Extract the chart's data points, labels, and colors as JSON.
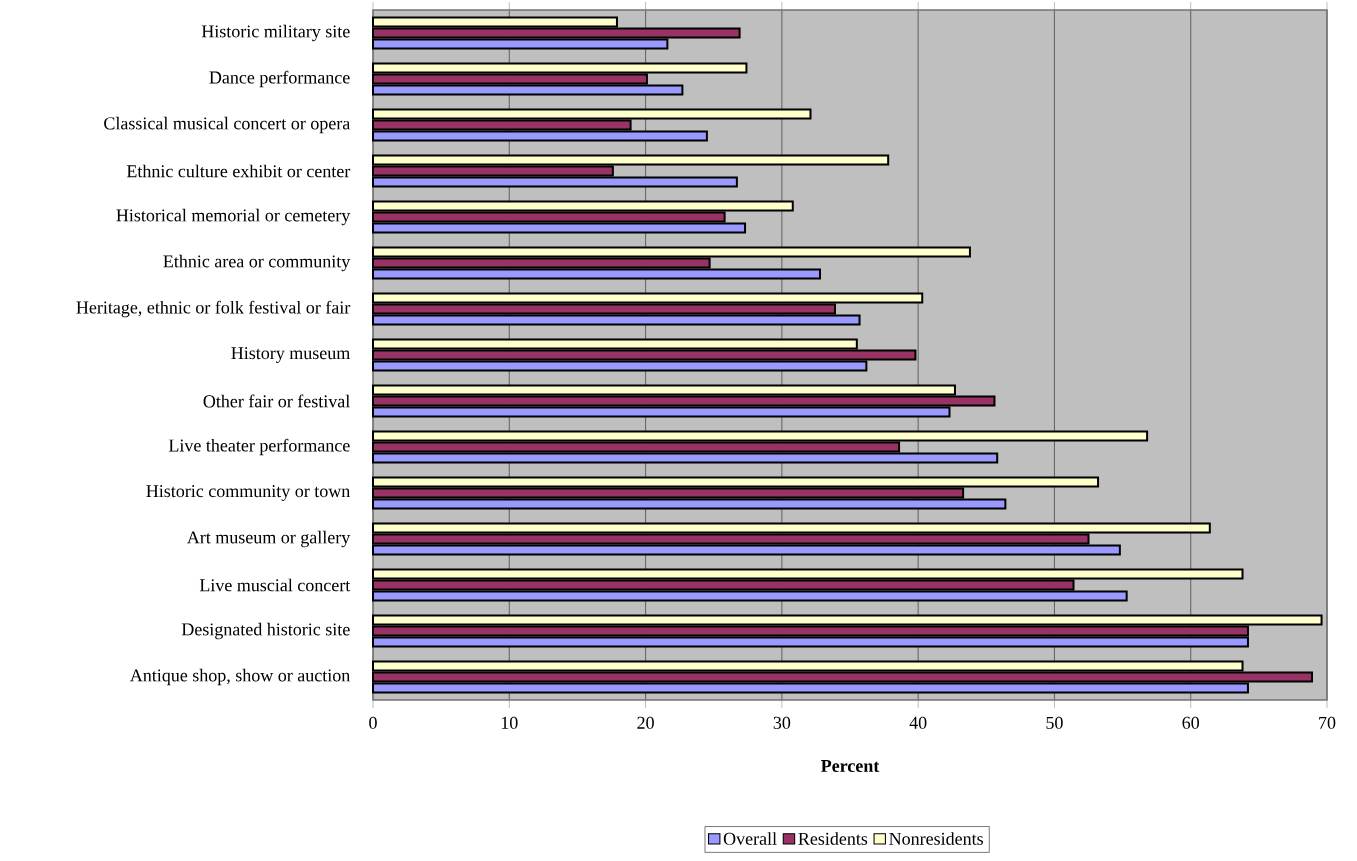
{
  "chart_data": {
    "type": "bar",
    "orientation": "horizontal",
    "xlabel": "Percent",
    "categories": [
      "Historic military site",
      "Dance performance",
      "Classical musical concert or opera",
      "Ethnic culture exhibit or center",
      "Historical memorial or cemetery",
      "Ethnic area or community",
      "Heritage, ethnic or folk festival or fair",
      "History museum",
      "Other fair or festival",
      "Live theater performance",
      "Historic community or town",
      "Art museum or gallery",
      "Live muscial concert",
      "Designated historic site",
      "Antique shop, show or auction"
    ],
    "series": [
      {
        "name": "Overall",
        "color": "#9999ff",
        "values": [
          21.6,
          22.7,
          24.5,
          26.7,
          27.3,
          32.8,
          35.7,
          36.2,
          42.3,
          45.8,
          46.4,
          54.8,
          55.3,
          64.2,
          64.2
        ]
      },
      {
        "name": "Residents",
        "color": "#993366",
        "values": [
          26.9,
          20.1,
          18.9,
          17.6,
          25.8,
          24.7,
          33.9,
          39.8,
          45.6,
          38.6,
          43.3,
          52.5,
          51.4,
          64.2,
          68.9
        ]
      },
      {
        "name": "Nonresidents",
        "color": "#ffffcc",
        "values": [
          17.9,
          27.4,
          32.1,
          37.8,
          30.8,
          43.8,
          40.3,
          35.5,
          42.7,
          56.8,
          53.2,
          61.4,
          63.8,
          69.6,
          63.8
        ]
      }
    ],
    "xlim": [
      0,
      70
    ],
    "xticks": [
      0,
      10,
      20,
      30,
      40,
      50,
      60,
      70
    ],
    "grid": "x",
    "legend": "bottom"
  }
}
